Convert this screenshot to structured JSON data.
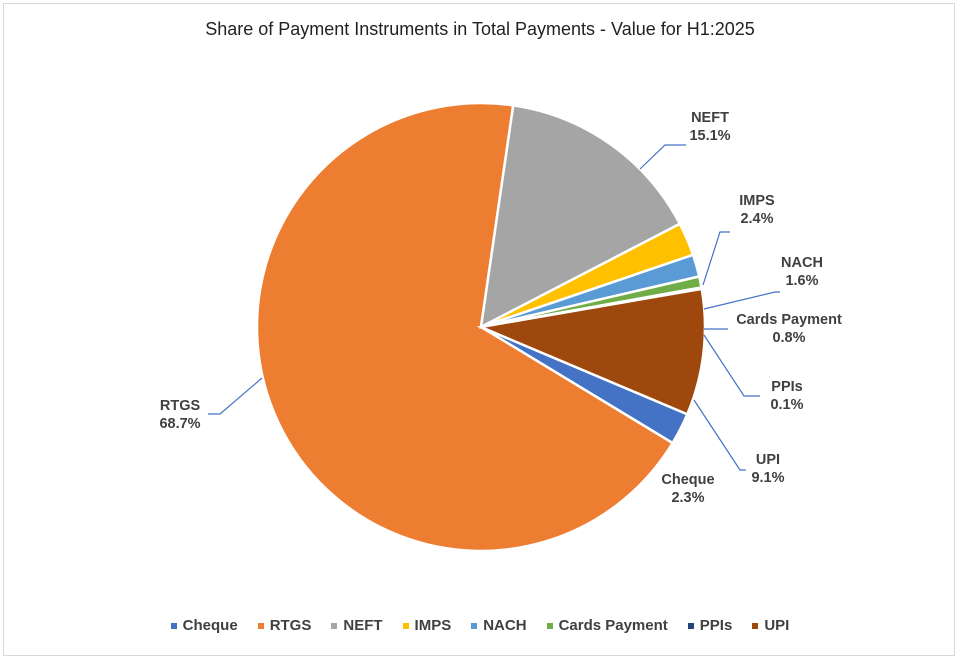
{
  "chart_data": {
    "type": "pie",
    "title": "Share of Payment Instruments in Total Payments - Value for H1:2025",
    "start_category": "RTGS",
    "categories": [
      "Cheque",
      "RTGS",
      "NEFT",
      "IMPS",
      "NACH",
      "Cards Payment",
      "PPIs",
      "UPI"
    ],
    "values": [
      2.3,
      68.7,
      15.1,
      2.4,
      1.6,
      0.8,
      0.1,
      9.1
    ],
    "value_labels": [
      "2.3%",
      "68.7%",
      "15.1%",
      "2.4%",
      "1.6%",
      "0.8%",
      "0.1%",
      "9.1%"
    ],
    "colors": [
      "#4472c4",
      "#ed7d31",
      "#a5a5a5",
      "#ffc000",
      "#5b9bd5",
      "#70ad47",
      "#264478",
      "#9e480e"
    ],
    "legend_position": "bottom"
  }
}
